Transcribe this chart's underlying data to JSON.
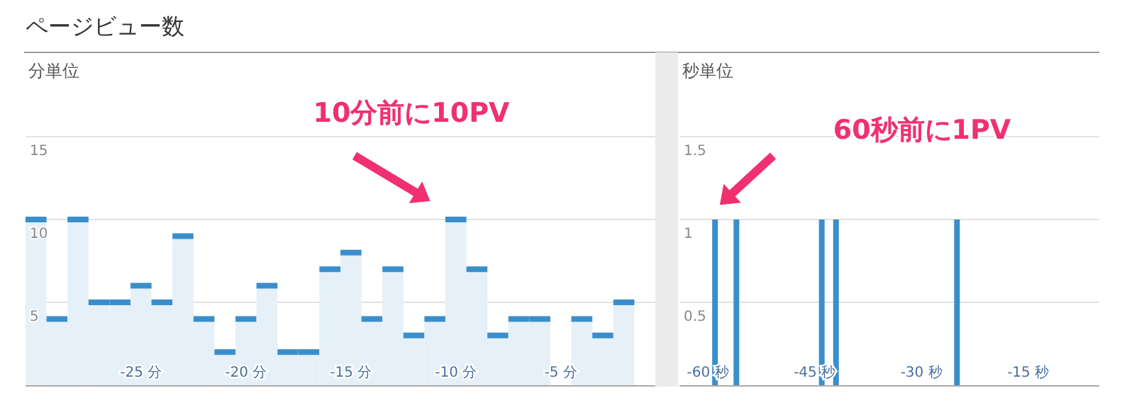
{
  "chart_data": [
    {
      "type": "histogram",
      "title": "ページビュー数",
      "subtitle": "分単位",
      "color": "#3a8ecb",
      "bins": [
        -30.5,
        -29.5,
        -28.5,
        -27.5,
        -26.5,
        -25.5,
        -24.5,
        -23.5,
        -22.5,
        -21.5,
        -20.5,
        -19.5,
        -18.5,
        -17.5,
        -16.5,
        -15.5,
        -14.5,
        -13.5,
        -12.5,
        -11.5,
        -10.5,
        -9.5,
        -8.5,
        -7.5,
        -6.5,
        -5.5,
        -4.5,
        -3.5,
        -2.5,
        -1.5,
        -0.5
      ],
      "values": [
        10,
        4,
        10,
        5,
        5,
        6,
        5,
        9,
        4,
        2,
        4,
        6,
        2,
        2,
        7,
        8,
        4,
        7,
        3,
        4,
        10,
        7,
        3,
        4,
        4,
        0,
        4,
        3,
        5,
        0
      ],
      "xlim": [
        -30.5,
        -0.5
      ],
      "ylim": [
        0,
        15
      ],
      "xticks": [
        {
          "value": -25,
          "label": "-25 分"
        },
        {
          "value": -20,
          "label": "-20 分"
        },
        {
          "value": -15,
          "label": "-15 分"
        },
        {
          "value": -10,
          "label": "-10 分"
        },
        {
          "value": -5,
          "label": "-5 分"
        }
      ],
      "yticks": [
        5,
        10,
        15
      ],
      "grid": "y",
      "annotations": [
        "10分前に10PV"
      ]
    },
    {
      "type": "bar",
      "subtitle": "秒単位",
      "color": "#3a8ecb",
      "x": [
        -59,
        -56,
        -44,
        -42,
        -25
      ],
      "values": [
        1,
        1,
        1,
        1,
        1
      ],
      "xlim": [
        -64,
        -5
      ],
      "ylim": [
        0,
        1.5
      ],
      "xticks": [
        {
          "value": -60,
          "label": "-60 秒"
        },
        {
          "value": -45,
          "label": "-45 秒"
        },
        {
          "value": -30,
          "label": "-30 秒"
        },
        {
          "value": -15,
          "label": "-15 秒"
        }
      ],
      "yticks": [
        0.5,
        1,
        1.5
      ],
      "grid": "y",
      "annotations": [
        "60秒前に1PV"
      ]
    }
  ]
}
